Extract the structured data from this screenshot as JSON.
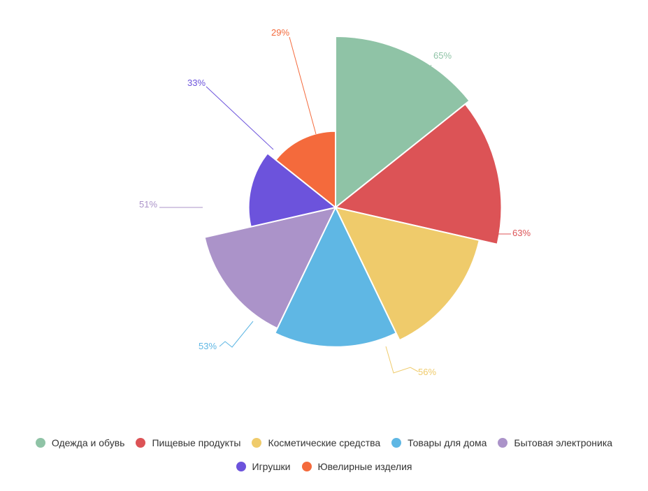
{
  "chart_data": {
    "type": "pie",
    "variant": "variable-radius",
    "title": "",
    "categories": [
      "Одежда и обувь",
      "Пищевые продукты",
      "Косметические средства",
      "Товары для дома",
      "Бытовая электроника",
      "Игрушки",
      "Ювелирные изделия"
    ],
    "values": [
      65,
      63,
      56,
      53,
      51,
      33,
      29
    ],
    "labels": [
      "65%",
      "63%",
      "56%",
      "53%",
      "51%",
      "33%",
      "29%"
    ],
    "colors": [
      "#8fc3a6",
      "#dc5356",
      "#efcb6b",
      "#5fb7e4",
      "#ab93c9",
      "#6c53dc",
      "#f46a3c"
    ],
    "legend_position": "bottom"
  }
}
